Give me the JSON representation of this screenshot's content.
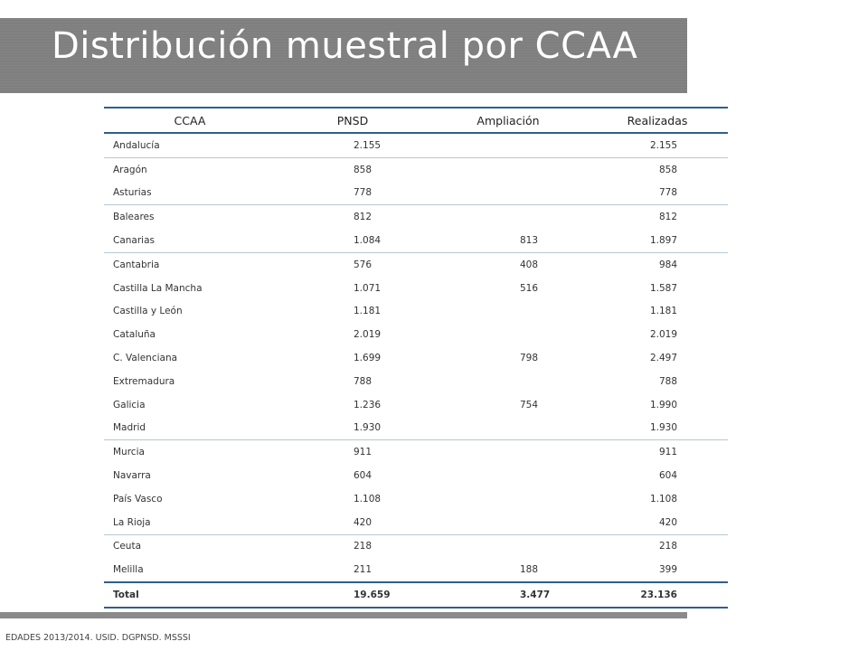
{
  "slide": {
    "title": "Distribución muestral por CCAA",
    "footer": "EDADES 2013/2014. USID. DGPNSD. MSSSI"
  },
  "table": {
    "headers": [
      "CCAA",
      "PNSD",
      "Ampliación",
      "Realizadas"
    ],
    "rows": [
      [
        "Andalucía",
        "2.155",
        "",
        "2.155"
      ],
      [
        "Aragón",
        "858",
        "",
        "858"
      ],
      [
        "Asturias",
        "778",
        "",
        "778"
      ],
      [
        "Baleares",
        "812",
        "",
        "812"
      ],
      [
        "Canarias",
        "1.084",
        "813",
        "1.897"
      ],
      [
        "Cantabria",
        "576",
        "408",
        "984"
      ],
      [
        "Castilla La Mancha",
        "1.071",
        "516",
        "1.587"
      ],
      [
        "Castilla y León",
        "1.181",
        "",
        "1.181"
      ],
      [
        "Cataluña",
        "2.019",
        "",
        "2.019"
      ],
      [
        "C. Valenciana",
        "1.699",
        "798",
        "2.497"
      ],
      [
        "Extremadura",
        "788",
        "",
        "788"
      ],
      [
        "Galicia",
        "1.236",
        "754",
        "1.990"
      ],
      [
        "Madrid",
        "1.930",
        "",
        "1.930"
      ],
      [
        "Murcia",
        "911",
        "",
        "911"
      ],
      [
        "Navarra",
        "604",
        "",
        "604"
      ],
      [
        "País Vasco",
        "1.108",
        "",
        "1.108"
      ],
      [
        "La Rioja",
        "420",
        "",
        "420"
      ],
      [
        "Ceuta",
        "218",
        "",
        "218"
      ],
      [
        "Melilla",
        "211",
        "188",
        "399"
      ]
    ],
    "total": [
      "Total",
      "19.659",
      "3.477",
      "23.136"
    ]
  },
  "colors": {
    "title_band": "#7f7f7f",
    "rule": "#2f5f8f",
    "total_text": "#1d3f63"
  }
}
